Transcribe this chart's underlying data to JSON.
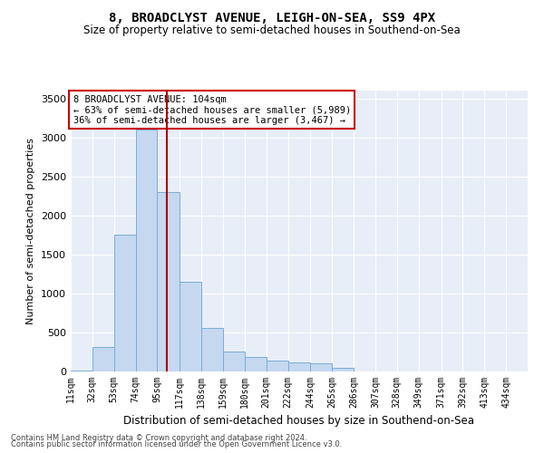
{
  "title": "8, BROADCLYST AVENUE, LEIGH-ON-SEA, SS9 4PX",
  "subtitle": "Size of property relative to semi-detached houses in Southend-on-Sea",
  "xlabel": "Distribution of semi-detached houses by size in Southend-on-Sea",
  "ylabel": "Number of semi-detached properties",
  "footer_line1": "Contains HM Land Registry data © Crown copyright and database right 2024.",
  "footer_line2": "Contains public sector information licensed under the Open Government Licence v3.0.",
  "annotation_line1": "8 BROADCLYST AVENUE: 104sqm",
  "annotation_line2": "← 63% of semi-detached houses are smaller (5,989)",
  "annotation_line3": "36% of semi-detached houses are larger (3,467) →",
  "property_size": 104,
  "bar_color": "#c5d8f0",
  "bar_edge_color": "#7aadd4",
  "marker_line_color": "#aa0000",
  "background_color": "#e8eef7",
  "ylim": [
    0,
    3600
  ],
  "categories": [
    "11sqm",
    "32sqm",
    "53sqm",
    "74sqm",
    "95sqm",
    "117sqm",
    "138sqm",
    "159sqm",
    "180sqm",
    "201sqm",
    "222sqm",
    "244sqm",
    "265sqm",
    "286sqm",
    "307sqm",
    "328sqm",
    "349sqm",
    "371sqm",
    "392sqm",
    "413sqm",
    "434sqm"
  ],
  "values": [
    15,
    310,
    1750,
    3100,
    2300,
    1150,
    560,
    250,
    185,
    145,
    115,
    100,
    45,
    0,
    0,
    0,
    0,
    0,
    0,
    0,
    0
  ],
  "bin_edges": [
    11,
    32,
    53,
    74,
    95,
    117,
    138,
    159,
    180,
    201,
    222,
    244,
    265,
    286,
    307,
    328,
    349,
    371,
    392,
    413,
    434,
    455
  ]
}
